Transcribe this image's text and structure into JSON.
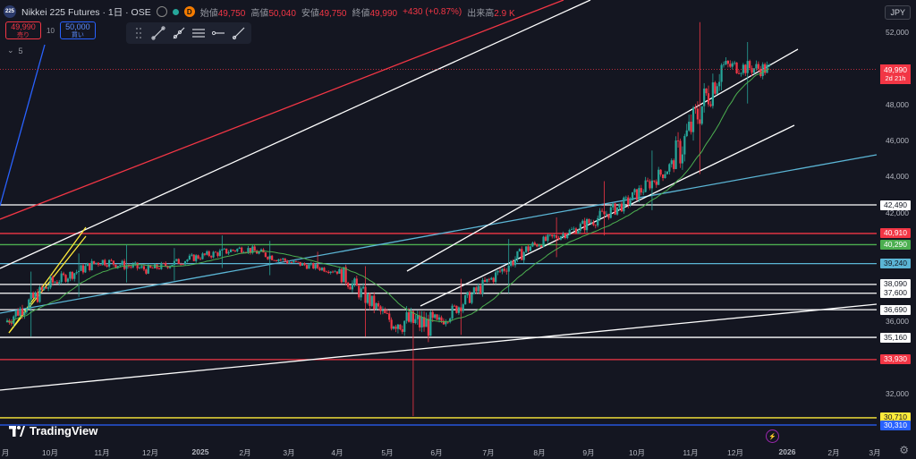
{
  "header": {
    "symbol_logo": "225",
    "title": "Nikkei 225 Futures · 1日 · OSE",
    "badge": "D",
    "open_label": "始値",
    "open_value": "49,750",
    "high_label": "高値",
    "high_value": "50,040",
    "low_label": "安値",
    "low_value": "49,750",
    "close_label": "終値",
    "close_value": "49,990",
    "change": "+430 (+0.87%)",
    "volume_label": "出来高",
    "volume_value": "2.9 K"
  },
  "trade": {
    "sell_price": "49,990",
    "sell_label": "売り",
    "spread": "10",
    "buy_price": "50,000",
    "buy_label": "買い"
  },
  "indicator_count": "5",
  "currency": "JPY",
  "price_scale": [
    "52,000",
    "50,000",
    "48,000",
    "46,000",
    "44,000",
    "42,000",
    "36,000",
    "32,000"
  ],
  "price_tags": [
    {
      "value": "49,990",
      "sub": "2d 21h",
      "bg": "#f23645",
      "fg": "#ffffff"
    },
    {
      "value": "42,490",
      "bg": "#ffffff",
      "fg": "#131722"
    },
    {
      "value": "40,910",
      "bg": "#f23645",
      "fg": "#ffffff"
    },
    {
      "value": "40,290",
      "bg": "#4caf50",
      "fg": "#ffffff"
    },
    {
      "value": "39,240",
      "bg": "#5bb5d5",
      "fg": "#131722"
    },
    {
      "value": "38,090",
      "bg": "#ffffff",
      "fg": "#131722"
    },
    {
      "value": "37,600",
      "bg": "#ffffff",
      "fg": "#131722"
    },
    {
      "value": "36,690",
      "bg": "#ffffff",
      "fg": "#131722"
    },
    {
      "value": "35,160",
      "bg": "#ffffff",
      "fg": "#131722"
    },
    {
      "value": "33,930",
      "bg": "#f23645",
      "fg": "#ffffff"
    },
    {
      "value": "30,710",
      "bg": "#ffeb3b",
      "fg": "#131722"
    },
    {
      "value": "30,310",
      "bg": "#2962ff",
      "fg": "#ffffff"
    }
  ],
  "time_scale": [
    "月",
    "10月",
    "11月",
    "12月",
    "2025",
    "2月",
    "3月",
    "4月",
    "5月",
    "6月",
    "7月",
    "8月",
    "9月",
    "10月",
    "11月",
    "12月",
    "2026",
    "2月",
    "3月"
  ],
  "brand": "TradingView",
  "colors": {
    "background": "#141621",
    "up": "#26a69a",
    "down": "#f23645",
    "white_line": "#ffffff",
    "red_line": "#f23645",
    "cyan_line": "#5bb5d5",
    "green_line": "#4caf50",
    "yellow_line": "#ffeb3b",
    "blue_line": "#2962ff",
    "ma_line": "#4caf50"
  },
  "chart_data": {
    "type": "candlestick",
    "series_description_values": [
      [
        2024.67,
        36000,
        38800,
        35200,
        38200
      ],
      [
        2024.75,
        38200,
        39800,
        37400,
        39400
      ],
      [
        2024.83,
        39400,
        40300,
        38200,
        38900
      ],
      [
        2024.92,
        38900,
        40100,
        38300,
        39600
      ],
      [
        2025.0,
        39600,
        40800,
        39000,
        40100
      ],
      [
        2025.08,
        40100,
        40500,
        38600,
        39300
      ],
      [
        2025.17,
        39300,
        39900,
        38400,
        38800
      ],
      [
        2025.25,
        38800,
        39100,
        35200,
        36200
      ],
      [
        2025.33,
        36200,
        36800,
        30800,
        35800
      ],
      [
        2025.42,
        35800,
        38400,
        35300,
        38000
      ],
      [
        2025.5,
        38000,
        40600,
        37600,
        40200
      ],
      [
        2025.58,
        40200,
        41800,
        39600,
        41200
      ],
      [
        2025.67,
        41200,
        43800,
        40800,
        42600
      ],
      [
        2025.75,
        42600,
        45500,
        42200,
        44800
      ],
      [
        2025.83,
        44800,
        52600,
        44200,
        50200
      ],
      [
        2025.92,
        50200,
        51500,
        48100,
        49990
      ]
    ],
    "ohlc_fields": [
      "date",
      "open",
      "high",
      "low",
      "close"
    ],
    "horizontal_levels": [
      42490,
      40910,
      40290,
      39240,
      38090,
      37600,
      36690,
      35160,
      33930,
      30710,
      30310
    ],
    "ylim": [
      29600,
      53200
    ],
    "last_price": 49990,
    "last_price_countdown": "2d 21h"
  }
}
